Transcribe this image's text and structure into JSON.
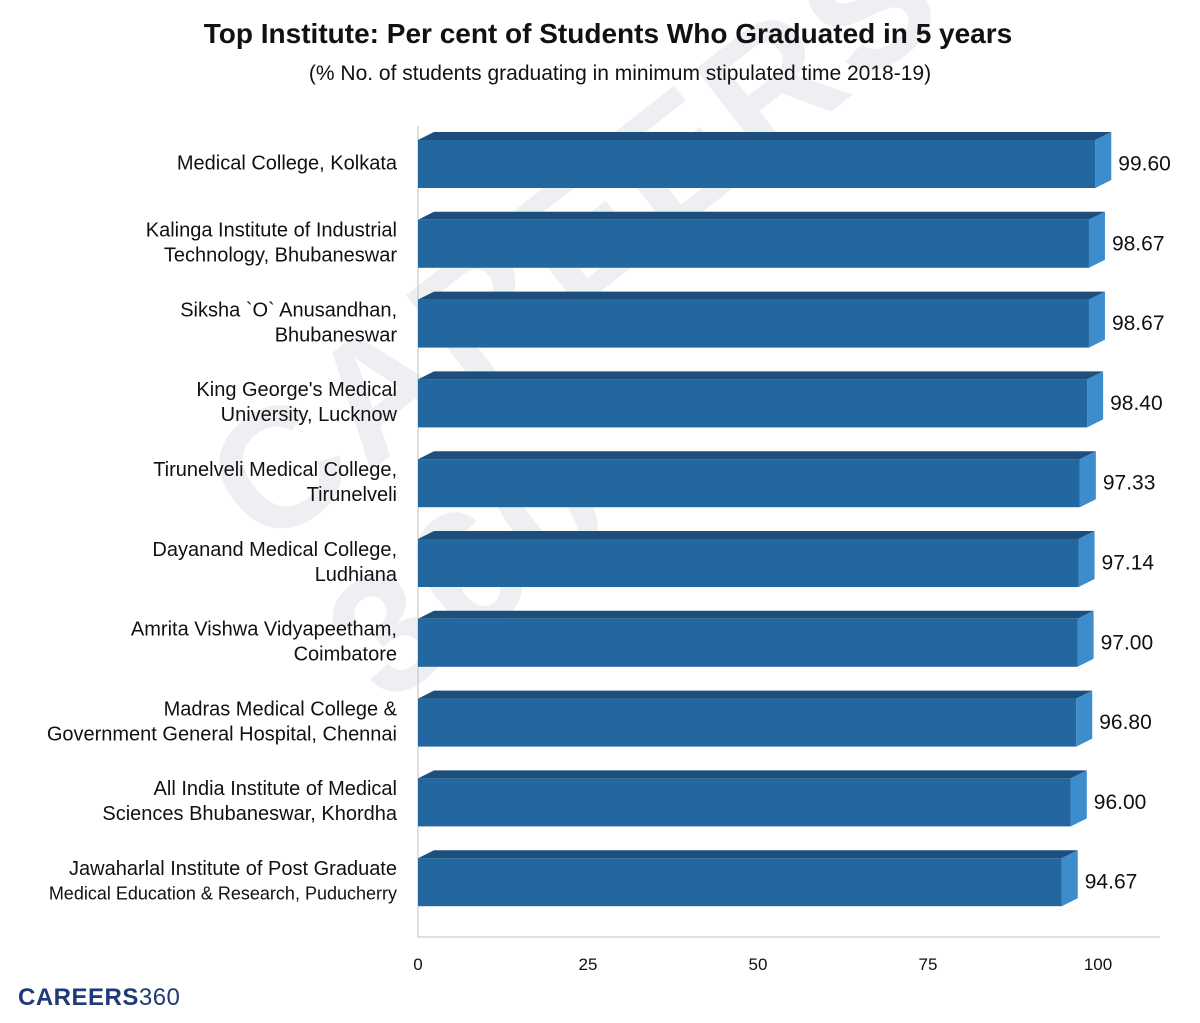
{
  "chart_data": {
    "type": "bar",
    "orientation": "horizontal",
    "title": "Top Institute: Per cent of Students Who Graduated in 5 years",
    "subtitle": "(% No. of students graduating in minimum stipulated time 2018-19)",
    "categories": [
      [
        "Medical College, Kolkata"
      ],
      [
        "Kalinga Institute of Industrial",
        "Technology, Bhubaneswar"
      ],
      [
        "Siksha `O` Anusandhan,",
        "Bhubaneswar"
      ],
      [
        "King George's Medical",
        "University, Lucknow"
      ],
      [
        "Tirunelveli Medical College,",
        "Tirunelveli"
      ],
      [
        "Dayanand Medical College,",
        "Ludhiana"
      ],
      [
        "Amrita Vishwa Vidyapeetham,",
        "Coimbatore"
      ],
      [
        "Madras Medical College &",
        "Government General Hospital, Chennai"
      ],
      [
        "All India Institute of Medical",
        "Sciences Bhubaneswar, Khordha"
      ],
      [
        "Jawaharlal Institute of Post Graduate",
        "Medical Education & Research, Puducherry"
      ]
    ],
    "values": [
      99.6,
      98.67,
      98.67,
      98.4,
      97.33,
      97.14,
      97.0,
      96.8,
      96.0,
      94.67
    ],
    "value_labels": [
      "99.60",
      "98.67",
      "98.67",
      "98.40",
      "97.33",
      "97.14",
      "97.00",
      "96.80",
      "96.00",
      "94.67"
    ],
    "xlim": [
      0,
      100
    ],
    "xticks": [
      0,
      25,
      50,
      75,
      100
    ],
    "grid": false,
    "bar_style": "3d",
    "colors": {
      "bar_front": "#2367a0",
      "bar_top": "#1d4f7d",
      "bar_side": "#3d8ccc",
      "axis": "#bfbfbf",
      "text": "#111111"
    }
  },
  "brand": {
    "name": "CAREERS",
    "number": "360"
  },
  "watermark": "CAREERS 360"
}
